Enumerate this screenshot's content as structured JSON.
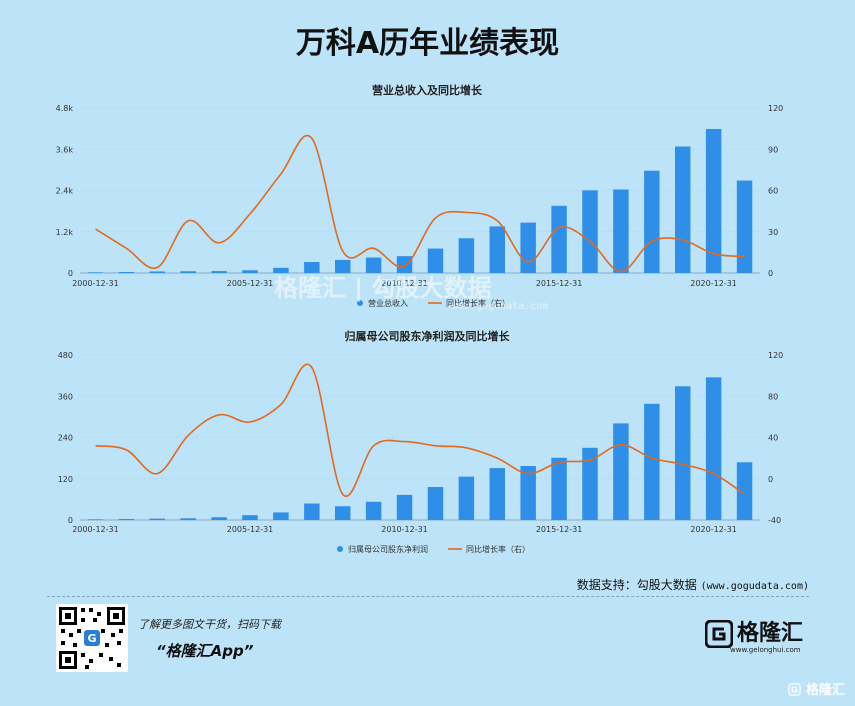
{
  "page_title": "万科A历年业绩表现",
  "chart_data": [
    {
      "type": "bar",
      "title": "营业总收入及同比增长",
      "x_tick_labels": [
        "2000-12-31",
        "2005-12-31",
        "2010-12-31",
        "2015-12-31",
        "2020-12-31"
      ],
      "x_tick_index": [
        0,
        5,
        10,
        15,
        20
      ],
      "left_axis": {
        "ticks": [
          "0",
          "1.2k",
          "2.4k",
          "3.6k",
          "4.8k"
        ],
        "ylim": [
          0,
          4800
        ]
      },
      "right_axis": {
        "ticks": [
          "0",
          "30",
          "60",
          "90",
          "120"
        ],
        "ylim": [
          0,
          120
        ]
      },
      "series": [
        {
          "name": "营业总收入",
          "kind": "bar",
          "color": "#2f8ee8",
          "values": [
            20,
            30,
            45,
            50,
            55,
            80,
            150,
            320,
            380,
            450,
            490,
            710,
            1010,
            1355,
            1465,
            1955,
            2405,
            2430,
            2975,
            3680,
            4190,
            2690
          ]
        },
        {
          "name": "同比增长率（右）",
          "kind": "line",
          "color": "#e06a1e",
          "values": [
            32,
            18,
            4,
            38,
            22,
            43,
            72,
            98,
            16,
            18,
            5,
            40,
            44,
            38,
            8,
            33,
            23,
            1,
            23,
            24,
            14,
            12
          ]
        }
      ]
    },
    {
      "type": "bar",
      "title": "归属母公司股东净利润及同比增长",
      "x_tick_labels": [
        "2000-12-31",
        "2005-12-31",
        "2010-12-31",
        "2015-12-31",
        "2020-12-31"
      ],
      "x_tick_index": [
        0,
        5,
        10,
        15,
        20
      ],
      "left_axis": {
        "ticks": [
          "0",
          "120",
          "240",
          "360",
          "480"
        ],
        "ylim": [
          0,
          480
        ]
      },
      "right_axis": {
        "ticks": [
          "-40",
          "0",
          "40",
          "80",
          "120"
        ],
        "ylim": [
          -40,
          120
        ]
      },
      "series": [
        {
          "name": "归属母公司股东净利润",
          "kind": "bar",
          "color": "#2f8ee8",
          "values": [
            2,
            3,
            4,
            5,
            8,
            14,
            22,
            48,
            40,
            53,
            73,
            96,
            126,
            151,
            157,
            181,
            210,
            281,
            338,
            389,
            415,
            168
          ]
        },
        {
          "name": "同比增长率（右）",
          "kind": "line",
          "color": "#e06a1e",
          "values": [
            32,
            28,
            5,
            42,
            62,
            55,
            72,
            108,
            -15,
            32,
            36,
            32,
            30,
            20,
            5,
            16,
            18,
            33,
            20,
            14,
            5,
            -15
          ]
        }
      ]
    }
  ],
  "center_watermark": {
    "text": "格隆汇 | 勾股大数据",
    "url": "www.gogudata.com"
  },
  "source_text": "数据支持：勾股大数据",
  "source_url": "(www.gogudata.com)",
  "promo_line": "了解更多图文干货，扫码下载",
  "promo_app": "“格隆汇App”",
  "logo_text": "格隆汇",
  "logo_url": "www.gelonghui.com",
  "corner_watermark": "格隆汇"
}
